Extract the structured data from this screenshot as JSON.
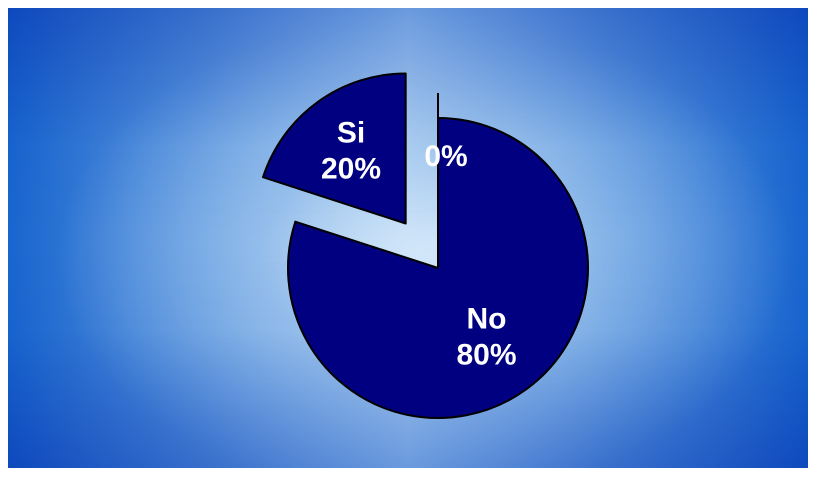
{
  "chart_data": {
    "type": "pie",
    "exploded": true,
    "slices": [
      {
        "label": "No",
        "value": 80,
        "value_label": "80%",
        "color": "#000080"
      },
      {
        "label": "Si",
        "value": 20,
        "value_label": "20%",
        "color": "#000080"
      },
      {
        "label": "",
        "value": 0,
        "value_label": "0%",
        "color": "#000080"
      }
    ],
    "label_color": "#ffffff"
  }
}
